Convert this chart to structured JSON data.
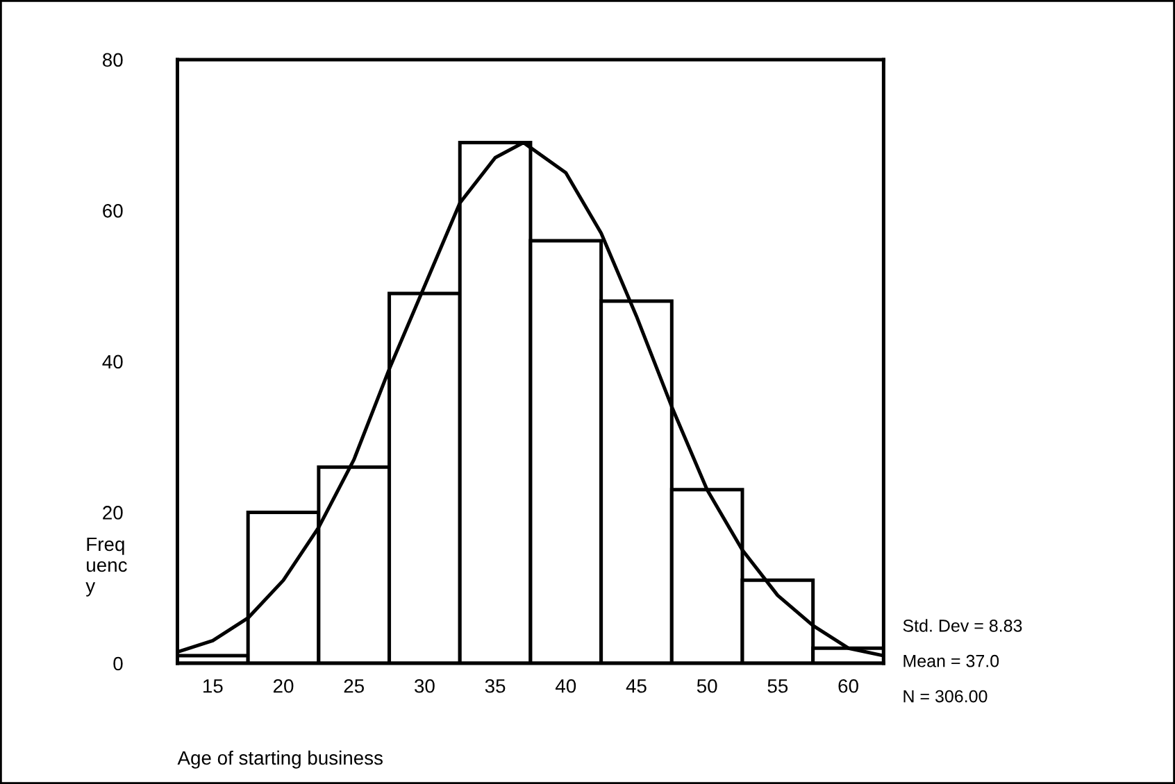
{
  "chart_data": {
    "type": "histogram",
    "xlabel": "Age of starting business",
    "ylabel": "Freq\nuenc\ny",
    "bins": [
      12.5,
      17.5,
      22.5,
      27.5,
      32.5,
      37.5,
      42.5,
      47.5,
      52.5,
      57.5,
      62.5
    ],
    "values": [
      1,
      20,
      26,
      49,
      69,
      56,
      48,
      23,
      11,
      2
    ],
    "color": "#ffffff",
    "series": [
      {
        "type": "line",
        "color": "#000000",
        "x": [
          12.5,
          15,
          17.5,
          20,
          22.5,
          25,
          27.5,
          30,
          32.5,
          35,
          37,
          40,
          42.5,
          45,
          47.5,
          50,
          52.5,
          55,
          57.5,
          60,
          62.5
        ],
        "values": [
          1.5,
          3,
          6,
          11,
          18,
          27,
          39,
          50,
          61,
          67,
          69,
          65,
          57,
          46,
          34,
          23,
          15,
          9,
          5,
          2,
          1
        ]
      }
    ],
    "xlim": [
      12.5,
      62.5
    ],
    "ylim": [
      0,
      80
    ],
    "xticks": [
      15,
      20,
      25,
      30,
      35,
      40,
      45,
      50,
      55,
      60
    ],
    "yticks": [
      0,
      20,
      40,
      60,
      80
    ],
    "annotations": [
      "Std. Dev = 8.83",
      "Mean = 37.0",
      "N = 306.00"
    ],
    "grid": false,
    "legend": false
  }
}
